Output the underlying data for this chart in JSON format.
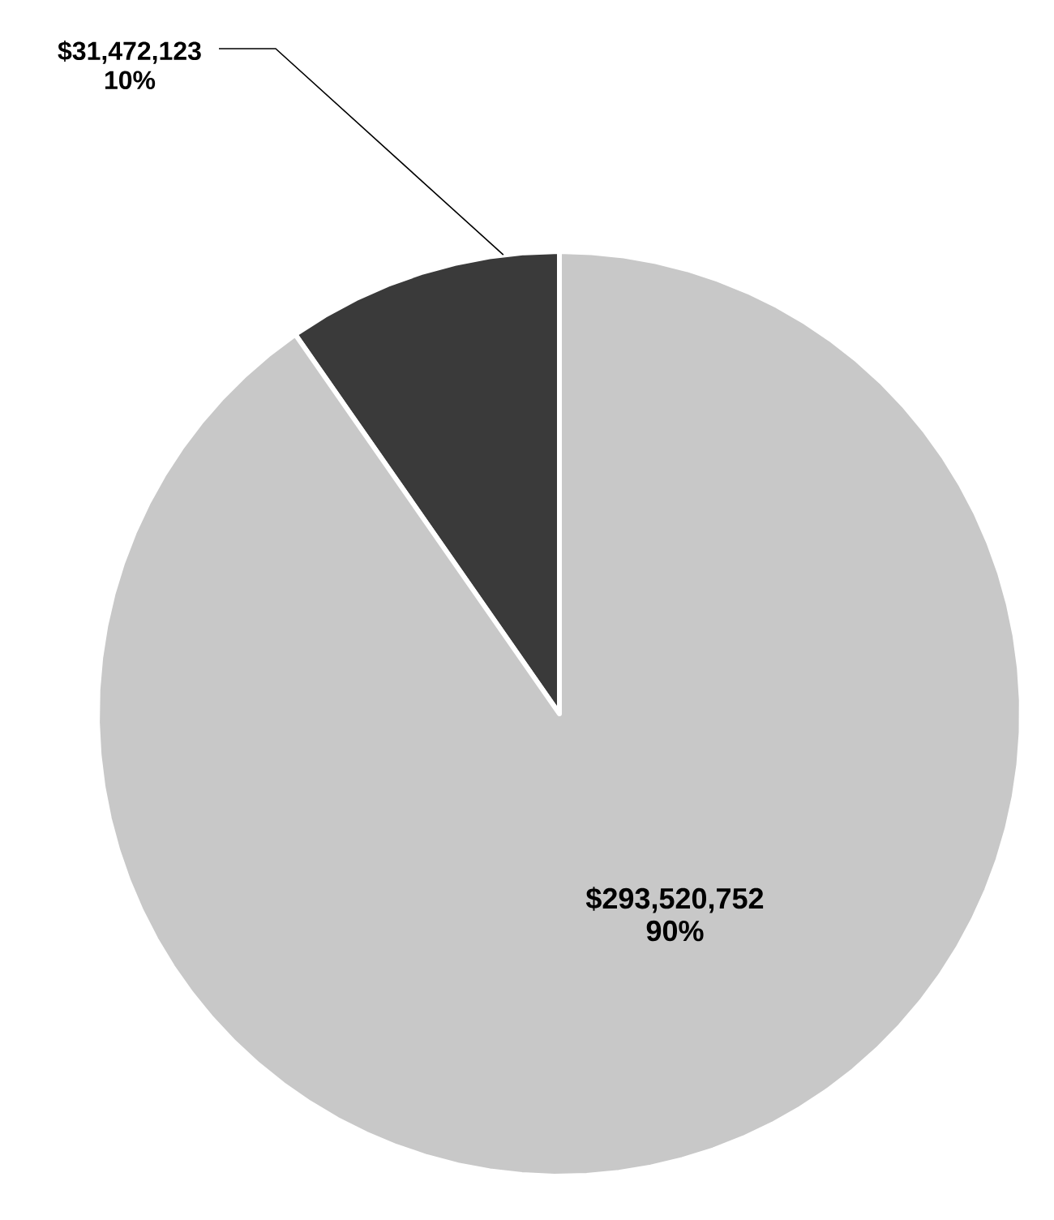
{
  "chart_data": {
    "type": "pie",
    "categories": [
      null,
      null
    ],
    "values": [
      31472123,
      293520752
    ],
    "colors": [
      "#3a3a3a",
      "#c8c8c8"
    ],
    "value_labels": [
      "$31,472,123 10%",
      "$293,520,752 90%"
    ]
  }
}
